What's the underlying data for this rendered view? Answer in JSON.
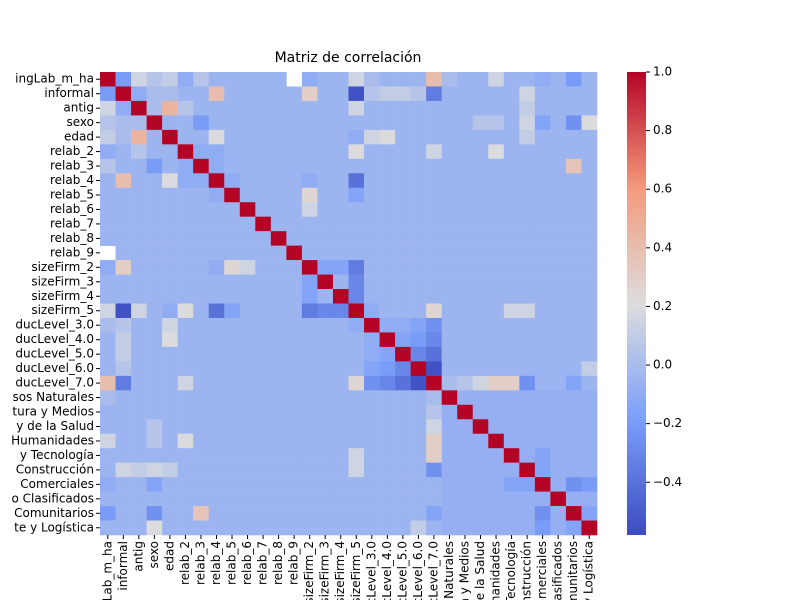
{
  "chart_data": {
    "type": "heatmap",
    "title": "Matriz de correlación",
    "categories": [
      "ingLab_m_ha",
      "informal",
      "antig",
      "sexo",
      "edad",
      "relab_2",
      "relab_3",
      "relab_4",
      "relab_5",
      "relab_6",
      "relab_7",
      "relab_8",
      "relab_9",
      "sizeFirm_2",
      "sizeFirm_3",
      "sizeFirm_4",
      "sizeFirm_5",
      "ducLevel_3.0",
      "ducLevel_4.0",
      "ducLevel_5.0",
      "ducLevel_6.0",
      "ducLevel_7.0",
      "sos Naturales",
      "tura y Medios",
      "y de la Salud",
      "Humanidades",
      "y Tecnología",
      "Construcción",
      "Comerciales",
      "o Clasificados",
      "Comunitarios",
      "te y Logística"
    ],
    "values": [
      [
        1,
        -0.2,
        0.15,
        0.05,
        0.1,
        -0.1,
        0.05,
        -0.05,
        -0.05,
        -0.05,
        -0.05,
        -0.05,
        null,
        -0.1,
        -0.05,
        -0.05,
        0.15,
        0.0,
        -0.05,
        -0.05,
        -0.05,
        0.4,
        0.0,
        -0.05,
        -0.05,
        0.15,
        -0.05,
        -0.05,
        -0.1,
        -0.05,
        -0.2,
        -0.05
      ],
      [
        -0.2,
        1,
        -0.1,
        0.0,
        0.0,
        -0.05,
        -0.05,
        0.4,
        -0.05,
        -0.05,
        -0.05,
        -0.05,
        -0.05,
        0.3,
        -0.05,
        -0.05,
        -0.55,
        0.05,
        0.1,
        0.1,
        0.05,
        -0.35,
        -0.05,
        -0.05,
        -0.05,
        -0.05,
        -0.05,
        0.15,
        -0.05,
        -0.05,
        -0.05,
        -0.05
      ],
      [
        0.15,
        -0.1,
        1,
        0.0,
        0.45,
        0.05,
        -0.05,
        -0.05,
        -0.05,
        -0.05,
        -0.05,
        -0.05,
        -0.05,
        -0.05,
        -0.05,
        -0.05,
        0.15,
        -0.05,
        -0.05,
        -0.05,
        -0.05,
        -0.05,
        -0.05,
        -0.05,
        -0.05,
        -0.05,
        -0.05,
        0.1,
        -0.05,
        -0.05,
        -0.05,
        -0.05
      ],
      [
        0.05,
        0.0,
        0.0,
        1,
        -0.05,
        -0.05,
        -0.2,
        -0.05,
        -0.05,
        -0.05,
        -0.05,
        -0.05,
        -0.05,
        -0.05,
        -0.05,
        -0.05,
        -0.05,
        -0.05,
        -0.05,
        -0.05,
        -0.05,
        -0.05,
        -0.05,
        -0.05,
        0.05,
        0.05,
        -0.05,
        0.15,
        -0.15,
        -0.05,
        -0.25,
        0.2
      ],
      [
        0.1,
        0.0,
        0.45,
        -0.05,
        1,
        -0.05,
        -0.05,
        0.2,
        -0.05,
        -0.05,
        -0.05,
        -0.05,
        -0.05,
        -0.05,
        -0.05,
        -0.05,
        -0.1,
        0.15,
        0.2,
        -0.05,
        -0.05,
        -0.05,
        -0.05,
        -0.05,
        -0.05,
        -0.05,
        -0.05,
        0.1,
        -0.05,
        -0.05,
        -0.05,
        -0.05
      ],
      [
        -0.1,
        -0.05,
        0.05,
        -0.05,
        -0.05,
        1,
        -0.1,
        -0.1,
        -0.05,
        -0.05,
        -0.05,
        -0.05,
        -0.05,
        -0.05,
        -0.05,
        -0.05,
        0.2,
        -0.05,
        -0.05,
        -0.05,
        -0.05,
        0.15,
        -0.05,
        -0.05,
        -0.05,
        0.2,
        -0.05,
        -0.05,
        -0.05,
        -0.05,
        -0.05,
        -0.05
      ],
      [
        0.05,
        -0.05,
        -0.05,
        -0.2,
        -0.05,
        -0.1,
        1,
        -0.1,
        -0.05,
        -0.05,
        -0.05,
        -0.05,
        -0.05,
        -0.05,
        -0.05,
        -0.05,
        -0.05,
        -0.05,
        -0.05,
        -0.05,
        -0.05,
        -0.05,
        -0.05,
        -0.05,
        -0.05,
        -0.05,
        -0.05,
        -0.05,
        -0.05,
        -0.05,
        0.35,
        -0.05
      ],
      [
        -0.05,
        0.4,
        -0.05,
        -0.05,
        0.2,
        -0.1,
        -0.1,
        1,
        -0.1,
        -0.05,
        -0.05,
        -0.05,
        -0.05,
        -0.1,
        -0.05,
        -0.05,
        -0.4,
        -0.05,
        -0.05,
        -0.05,
        -0.05,
        -0.05,
        -0.05,
        -0.05,
        -0.05,
        -0.05,
        -0.05,
        -0.05,
        -0.05,
        -0.05,
        -0.05,
        -0.05
      ],
      [
        -0.05,
        -0.05,
        -0.05,
        -0.05,
        -0.05,
        -0.05,
        -0.05,
        -0.1,
        1,
        -0.05,
        -0.05,
        -0.05,
        -0.05,
        0.25,
        -0.05,
        -0.05,
        -0.15,
        -0.05,
        -0.05,
        -0.05,
        -0.05,
        -0.05,
        -0.05,
        -0.05,
        -0.05,
        -0.05,
        -0.05,
        -0.05,
        -0.05,
        -0.05,
        -0.05,
        -0.05
      ],
      [
        -0.05,
        -0.05,
        -0.05,
        -0.05,
        -0.05,
        -0.05,
        -0.05,
        -0.05,
        -0.05,
        1,
        -0.05,
        -0.05,
        -0.05,
        0.15,
        -0.05,
        -0.05,
        -0.05,
        -0.05,
        -0.05,
        -0.05,
        -0.05,
        -0.05,
        -0.05,
        -0.05,
        -0.05,
        -0.05,
        -0.05,
        -0.05,
        -0.05,
        -0.05,
        -0.05,
        -0.05
      ],
      [
        -0.05,
        -0.05,
        -0.05,
        -0.05,
        -0.05,
        -0.05,
        -0.05,
        -0.05,
        -0.05,
        -0.05,
        1,
        -0.05,
        -0.05,
        -0.05,
        -0.05,
        -0.05,
        -0.05,
        -0.05,
        -0.05,
        -0.05,
        -0.05,
        -0.05,
        -0.05,
        -0.05,
        -0.05,
        -0.05,
        -0.05,
        -0.05,
        -0.05,
        -0.05,
        -0.05,
        -0.05
      ],
      [
        -0.05,
        -0.05,
        -0.05,
        -0.05,
        -0.05,
        -0.05,
        -0.05,
        -0.05,
        -0.05,
        -0.05,
        -0.05,
        1,
        -0.05,
        -0.05,
        -0.05,
        -0.05,
        -0.05,
        -0.05,
        -0.05,
        -0.05,
        -0.05,
        -0.05,
        -0.05,
        -0.05,
        -0.05,
        -0.05,
        -0.05,
        -0.05,
        -0.05,
        -0.05,
        -0.05,
        -0.05
      ],
      [
        null,
        -0.05,
        -0.05,
        -0.05,
        -0.05,
        -0.05,
        -0.05,
        -0.05,
        -0.05,
        -0.05,
        -0.05,
        -0.05,
        1,
        -0.05,
        -0.05,
        -0.05,
        -0.05,
        -0.05,
        -0.05,
        -0.05,
        -0.05,
        -0.05,
        -0.05,
        -0.05,
        -0.05,
        -0.05,
        -0.05,
        -0.05,
        -0.05,
        -0.05,
        -0.05,
        -0.05
      ],
      [
        -0.1,
        0.3,
        -0.05,
        -0.05,
        -0.05,
        -0.05,
        -0.05,
        -0.1,
        0.25,
        0.15,
        -0.05,
        -0.05,
        -0.05,
        1,
        -0.15,
        -0.15,
        -0.35,
        -0.05,
        -0.05,
        -0.05,
        -0.05,
        -0.05,
        -0.05,
        -0.05,
        -0.05,
        -0.05,
        -0.05,
        -0.05,
        -0.05,
        -0.05,
        -0.05,
        -0.05
      ],
      [
        -0.05,
        -0.05,
        -0.05,
        -0.05,
        -0.05,
        -0.05,
        -0.05,
        -0.05,
        -0.05,
        -0.05,
        -0.05,
        -0.05,
        -0.05,
        -0.15,
        1,
        -0.05,
        -0.3,
        -0.05,
        -0.05,
        -0.05,
        -0.05,
        -0.05,
        -0.05,
        -0.05,
        -0.05,
        -0.05,
        -0.05,
        -0.05,
        -0.05,
        -0.05,
        -0.05,
        -0.05
      ],
      [
        -0.05,
        -0.05,
        -0.05,
        -0.05,
        -0.05,
        -0.05,
        -0.05,
        -0.05,
        -0.05,
        -0.05,
        -0.05,
        -0.05,
        -0.05,
        -0.15,
        -0.05,
        1,
        -0.3,
        -0.05,
        -0.05,
        -0.05,
        -0.05,
        -0.05,
        -0.05,
        -0.05,
        -0.05,
        -0.05,
        -0.05,
        -0.05,
        -0.05,
        -0.05,
        -0.05,
        -0.05
      ],
      [
        0.15,
        -0.55,
        0.15,
        -0.05,
        -0.1,
        0.2,
        -0.05,
        -0.4,
        -0.15,
        -0.05,
        -0.05,
        -0.05,
        -0.05,
        -0.35,
        -0.3,
        -0.3,
        1,
        -0.1,
        -0.05,
        -0.05,
        -0.05,
        0.25,
        -0.05,
        -0.05,
        -0.05,
        -0.05,
        0.15,
        0.15,
        -0.05,
        -0.05,
        -0.05,
        -0.05
      ],
      [
        0.0,
        0.05,
        -0.05,
        -0.05,
        0.15,
        -0.05,
        -0.05,
        -0.05,
        -0.05,
        -0.05,
        -0.05,
        -0.05,
        -0.05,
        -0.05,
        -0.05,
        -0.05,
        -0.1,
        1,
        -0.1,
        -0.1,
        -0.15,
        -0.25,
        -0.05,
        -0.05,
        -0.05,
        -0.05,
        -0.05,
        -0.05,
        -0.05,
        -0.05,
        -0.05,
        -0.05
      ],
      [
        -0.05,
        0.1,
        -0.05,
        -0.05,
        0.2,
        -0.05,
        -0.05,
        -0.05,
        -0.05,
        -0.05,
        -0.05,
        -0.05,
        -0.05,
        -0.05,
        -0.05,
        -0.05,
        -0.05,
        -0.1,
        1,
        -0.15,
        -0.2,
        -0.3,
        -0.05,
        -0.05,
        -0.05,
        -0.05,
        -0.05,
        -0.05,
        -0.05,
        -0.05,
        -0.05,
        -0.05
      ],
      [
        -0.05,
        0.1,
        -0.05,
        -0.05,
        -0.05,
        -0.05,
        -0.05,
        -0.05,
        -0.05,
        -0.05,
        -0.05,
        -0.05,
        -0.05,
        -0.05,
        -0.05,
        -0.05,
        -0.05,
        -0.1,
        -0.15,
        1,
        -0.3,
        -0.4,
        -0.05,
        -0.05,
        -0.05,
        -0.05,
        -0.05,
        -0.05,
        -0.05,
        -0.05,
        -0.05,
        -0.05
      ],
      [
        -0.05,
        0.05,
        -0.05,
        -0.05,
        -0.05,
        -0.05,
        -0.05,
        -0.05,
        -0.05,
        -0.05,
        -0.05,
        -0.05,
        -0.05,
        -0.05,
        -0.05,
        -0.05,
        -0.05,
        -0.15,
        -0.2,
        -0.3,
        1,
        -0.55,
        -0.05,
        -0.05,
        -0.05,
        -0.05,
        -0.05,
        -0.05,
        -0.05,
        -0.05,
        -0.05,
        0.1
      ],
      [
        0.4,
        -0.35,
        -0.05,
        -0.05,
        -0.05,
        0.15,
        -0.05,
        -0.05,
        -0.05,
        -0.05,
        -0.05,
        -0.05,
        -0.05,
        -0.05,
        -0.05,
        -0.05,
        0.25,
        -0.25,
        -0.3,
        -0.4,
        -0.55,
        1,
        0.0,
        0.05,
        0.15,
        0.3,
        0.3,
        -0.25,
        -0.05,
        -0.05,
        -0.15,
        -0.05
      ],
      [
        0.0,
        -0.05,
        -0.05,
        -0.05,
        -0.05,
        -0.05,
        -0.05,
        -0.05,
        -0.05,
        -0.05,
        -0.05,
        -0.05,
        -0.05,
        -0.05,
        -0.05,
        -0.05,
        -0.05,
        -0.05,
        -0.05,
        -0.05,
        -0.05,
        0.0,
        1,
        -0.08,
        -0.08,
        -0.08,
        -0.08,
        -0.08,
        -0.08,
        -0.08,
        -0.08,
        -0.08
      ],
      [
        -0.05,
        -0.05,
        -0.05,
        -0.05,
        -0.05,
        -0.05,
        -0.05,
        -0.05,
        -0.05,
        -0.05,
        -0.05,
        -0.05,
        -0.05,
        -0.05,
        -0.05,
        -0.05,
        -0.05,
        -0.05,
        -0.05,
        -0.05,
        -0.05,
        0.05,
        -0.08,
        1,
        -0.08,
        -0.08,
        -0.08,
        -0.08,
        -0.08,
        -0.08,
        -0.08,
        -0.08
      ],
      [
        -0.05,
        -0.05,
        -0.05,
        0.05,
        -0.05,
        -0.05,
        -0.05,
        -0.05,
        -0.05,
        -0.05,
        -0.05,
        -0.05,
        -0.05,
        -0.05,
        -0.05,
        -0.05,
        -0.05,
        -0.05,
        -0.05,
        -0.05,
        -0.05,
        0.15,
        -0.08,
        -0.08,
        1,
        -0.08,
        -0.08,
        -0.08,
        -0.08,
        -0.08,
        -0.08,
        -0.08
      ],
      [
        0.15,
        -0.05,
        -0.05,
        0.05,
        -0.05,
        0.2,
        -0.05,
        -0.05,
        -0.05,
        -0.05,
        -0.05,
        -0.05,
        -0.05,
        -0.05,
        -0.05,
        -0.05,
        -0.05,
        -0.05,
        -0.05,
        -0.05,
        -0.05,
        0.3,
        -0.08,
        -0.08,
        -0.08,
        1,
        -0.08,
        -0.08,
        -0.08,
        -0.08,
        -0.08,
        -0.08
      ],
      [
        -0.05,
        -0.05,
        -0.05,
        -0.05,
        -0.05,
        -0.05,
        -0.05,
        -0.05,
        -0.05,
        -0.05,
        -0.05,
        -0.05,
        -0.05,
        -0.05,
        -0.05,
        -0.05,
        0.15,
        -0.05,
        -0.05,
        -0.05,
        -0.05,
        0.3,
        -0.08,
        -0.08,
        -0.08,
        -0.08,
        1,
        -0.08,
        -0.15,
        -0.08,
        -0.08,
        -0.08
      ],
      [
        -0.05,
        0.15,
        0.1,
        0.15,
        0.1,
        -0.05,
        -0.05,
        -0.05,
        -0.05,
        -0.05,
        -0.05,
        -0.05,
        -0.05,
        -0.05,
        -0.05,
        -0.05,
        0.15,
        -0.05,
        -0.05,
        -0.05,
        -0.05,
        -0.25,
        -0.08,
        -0.08,
        -0.08,
        -0.08,
        -0.08,
        1,
        -0.15,
        -0.08,
        -0.08,
        -0.08
      ],
      [
        -0.1,
        -0.05,
        -0.05,
        -0.15,
        -0.05,
        -0.05,
        -0.05,
        -0.05,
        -0.05,
        -0.05,
        -0.05,
        -0.05,
        -0.05,
        -0.05,
        -0.05,
        -0.05,
        -0.05,
        -0.05,
        -0.05,
        -0.05,
        -0.05,
        -0.05,
        -0.08,
        -0.08,
        -0.08,
        -0.08,
        -0.15,
        -0.15,
        1,
        -0.08,
        -0.25,
        -0.2
      ],
      [
        -0.05,
        -0.05,
        -0.05,
        -0.05,
        -0.05,
        -0.05,
        -0.05,
        -0.05,
        -0.05,
        -0.05,
        -0.05,
        -0.05,
        -0.05,
        -0.05,
        -0.05,
        -0.05,
        -0.05,
        -0.05,
        -0.05,
        -0.05,
        -0.05,
        -0.05,
        -0.08,
        -0.08,
        -0.08,
        -0.08,
        -0.08,
        -0.08,
        -0.08,
        1,
        -0.08,
        -0.08
      ],
      [
        -0.2,
        -0.05,
        -0.05,
        -0.25,
        -0.05,
        -0.05,
        0.35,
        -0.05,
        -0.05,
        -0.05,
        -0.05,
        -0.05,
        -0.05,
        -0.05,
        -0.05,
        -0.05,
        -0.05,
        -0.05,
        -0.05,
        -0.05,
        -0.05,
        -0.15,
        -0.08,
        -0.08,
        -0.08,
        -0.08,
        -0.08,
        -0.08,
        -0.25,
        -0.08,
        1,
        -0.15
      ],
      [
        -0.05,
        -0.05,
        -0.05,
        0.2,
        -0.05,
        -0.05,
        -0.05,
        -0.05,
        -0.05,
        -0.05,
        -0.05,
        -0.05,
        -0.05,
        -0.05,
        -0.05,
        -0.05,
        -0.05,
        -0.05,
        -0.05,
        -0.05,
        0.1,
        -0.05,
        -0.08,
        -0.08,
        -0.08,
        -0.08,
        -0.08,
        -0.08,
        -0.2,
        -0.08,
        -0.15,
        1
      ]
    ],
    "clim": [
      -0.58,
      1
    ],
    "cticks": [
      {
        "value": -0.4,
        "label": "−0.4"
      },
      {
        "value": -0.2,
        "label": "−0.2"
      },
      {
        "value": 0,
        "label": "0.0"
      },
      0.2,
      0.4,
      0.6,
      0.8,
      {
        "value": 1,
        "label": "1.0"
      }
    ],
    "colormap": [
      "#3b4cc0",
      "#7b9ff9",
      "#dddddd",
      "#f49a7b",
      "#b40426"
    ]
  }
}
